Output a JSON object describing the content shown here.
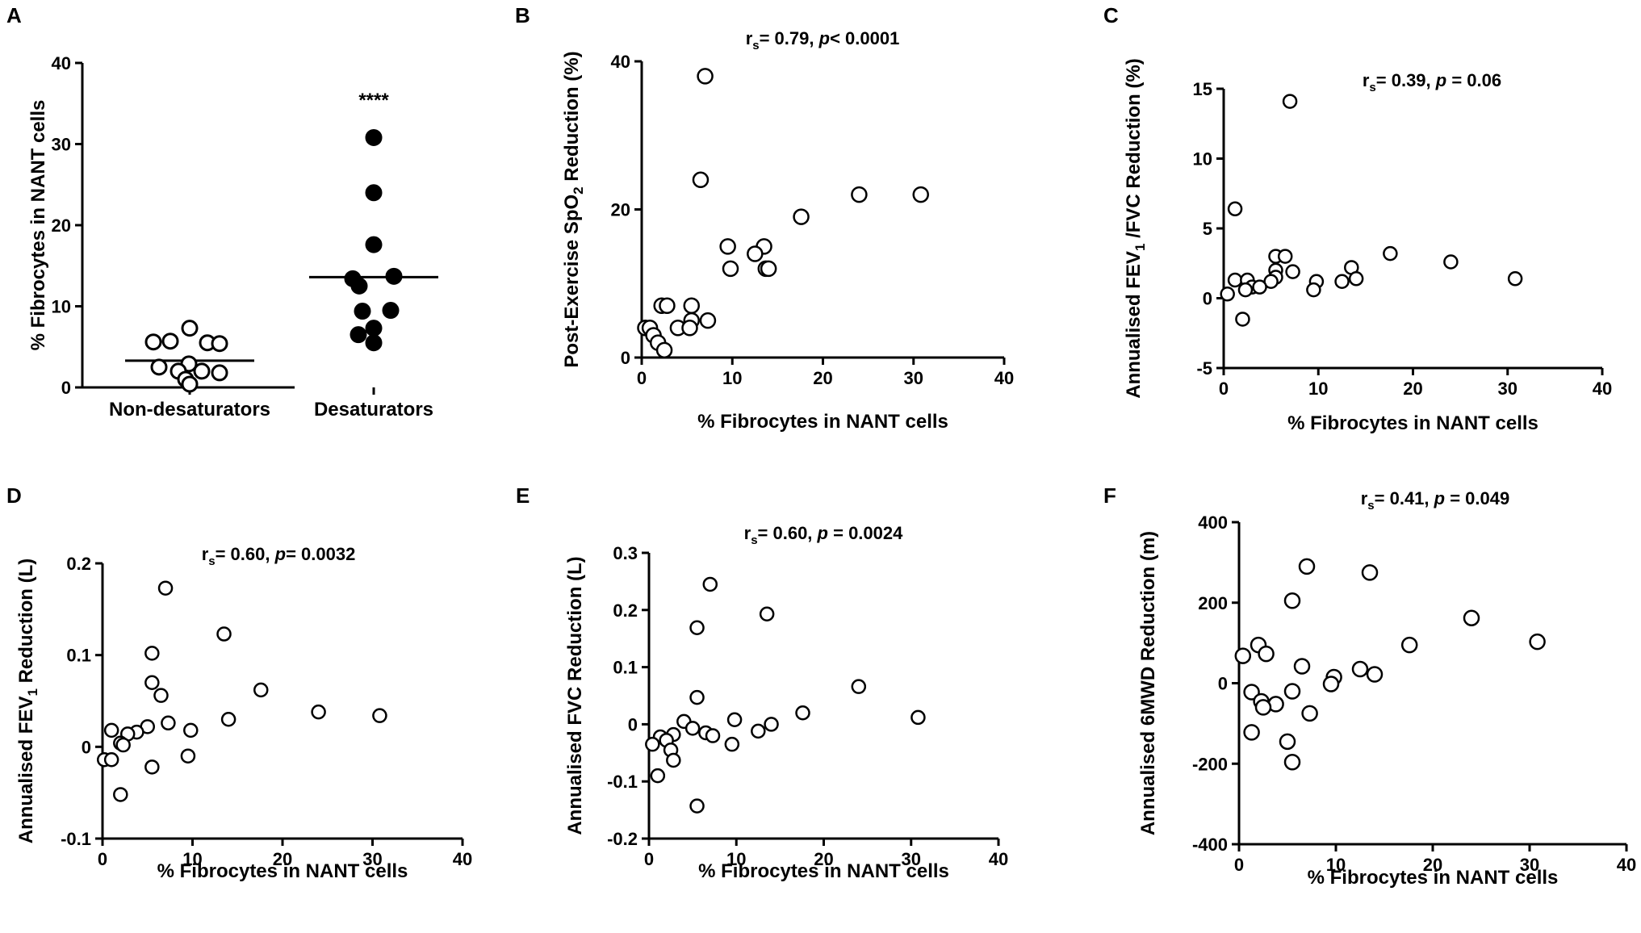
{
  "chart_data": [
    {
      "id": "A",
      "type": "scatter",
      "panel_label": "A",
      "ylabel": "% Fibrocytes in NANT cells",
      "xlabel": "",
      "categories": [
        "Non-desaturators",
        "Desaturators"
      ],
      "ylim": [
        0,
        40
      ],
      "yticks": [
        0,
        10,
        20,
        30,
        40
      ],
      "annotation": "****",
      "series": [
        {
          "name": "Non-desaturators",
          "fill": "open",
          "mean": 3.3,
          "values": [
            7.3,
            5.7,
            5.5,
            5.6,
            5.4,
            2.9,
            2.5,
            2.0,
            2.0,
            1.8,
            1.0,
            0.4
          ]
        },
        {
          "name": "Desaturators",
          "fill": "filled",
          "mean": 13.6,
          "values": [
            30.8,
            24.0,
            17.6,
            13.4,
            13.7,
            12.5,
            9.5,
            9.4,
            7.3,
            6.5,
            5.5
          ]
        }
      ]
    },
    {
      "id": "B",
      "type": "scatter",
      "panel_label": "B",
      "stat": {
        "rs": "r",
        "sub": "s",
        "pre": "= 0.79, ",
        "pvar": "p",
        "post": "< 0.0001"
      },
      "xlabel": "% Fibrocytes in NANT cells",
      "ylabel": "Post-Exercise SpO",
      "ylabel_sub": "2",
      "ylabel_end": " Reduction (%)",
      "xlim": [
        0,
        40
      ],
      "ylim": [
        0,
        40
      ],
      "xticks": [
        0,
        10,
        20,
        30,
        40
      ],
      "yticks": [
        0,
        20,
        40
      ],
      "points": [
        [
          7.0,
          38.0
        ],
        [
          6.5,
          24.0
        ],
        [
          24.0,
          22.0
        ],
        [
          30.8,
          22.0
        ],
        [
          17.6,
          19.0
        ],
        [
          13.5,
          15.0
        ],
        [
          9.5,
          15.0
        ],
        [
          12.5,
          14.0
        ],
        [
          13.7,
          12.0
        ],
        [
          14.0,
          12.0
        ],
        [
          9.8,
          12.0
        ],
        [
          2.2,
          7.0
        ],
        [
          2.8,
          7.0
        ],
        [
          5.5,
          7.0
        ],
        [
          5.5,
          5.0
        ],
        [
          7.3,
          5.0
        ],
        [
          0.4,
          4.0
        ],
        [
          0.9,
          4.0
        ],
        [
          4.0,
          4.0
        ],
        [
          5.3,
          4.0
        ],
        [
          1.3,
          3.0
        ],
        [
          1.8,
          2.0
        ],
        [
          2.5,
          1.0
        ]
      ]
    },
    {
      "id": "C",
      "type": "scatter",
      "panel_label": "C",
      "stat": {
        "rs": "r",
        "sub": "s",
        "pre": "= 0.39, ",
        "pvar": "p",
        "post": " = 0.06"
      },
      "xlabel": "% Fibrocytes in NANT cells",
      "ylabel": "Annualised FEV",
      "ylabel_sub": "1",
      "ylabel_end": " /FVC Reduction (%)",
      "xlim": [
        0,
        40
      ],
      "ylim": [
        -5,
        15
      ],
      "xticks": [
        0,
        10,
        20,
        30,
        40
      ],
      "yticks": [
        -5,
        0,
        5,
        10,
        15
      ],
      "points": [
        [
          7.0,
          14.1
        ],
        [
          1.2,
          6.4
        ],
        [
          5.5,
          3.0
        ],
        [
          6.5,
          3.0
        ],
        [
          17.6,
          3.2
        ],
        [
          24.0,
          2.6
        ],
        [
          13.5,
          2.2
        ],
        [
          5.5,
          2.0
        ],
        [
          7.3,
          1.9
        ],
        [
          5.5,
          1.5
        ],
        [
          1.2,
          1.3
        ],
        [
          2.5,
          1.3
        ],
        [
          5.0,
          1.2
        ],
        [
          9.8,
          1.2
        ],
        [
          12.5,
          1.2
        ],
        [
          14.0,
          1.4
        ],
        [
          30.8,
          1.4
        ],
        [
          3.0,
          0.8
        ],
        [
          3.8,
          0.8
        ],
        [
          2.3,
          0.6
        ],
        [
          9.5,
          0.6
        ],
        [
          0.4,
          0.3
        ],
        [
          2.0,
          -1.5
        ]
      ]
    },
    {
      "id": "D",
      "type": "scatter",
      "panel_label": "D",
      "stat": {
        "rs": "r",
        "sub": "s",
        "pre": "= 0.60, ",
        "pvar": "p",
        "post": "= 0.0032"
      },
      "xlabel": "% Fibrocytes in NANT cells",
      "ylabel": "Annualised FEV",
      "ylabel_sub": "1",
      "ylabel_end": " Reduction (L)",
      "xlim": [
        0,
        40
      ],
      "ylim": [
        -0.1,
        0.2
      ],
      "xticks": [
        0,
        10,
        20,
        30,
        40
      ],
      "yticks": [
        -0.1,
        0.0,
        0.1,
        0.2
      ],
      "points": [
        [
          7.0,
          0.173
        ],
        [
          13.5,
          0.123
        ],
        [
          5.5,
          0.102
        ],
        [
          5.5,
          0.07
        ],
        [
          17.6,
          0.062
        ],
        [
          6.5,
          0.056
        ],
        [
          24.0,
          0.038
        ],
        [
          30.8,
          0.034
        ],
        [
          14.0,
          0.03
        ],
        [
          7.3,
          0.026
        ],
        [
          5.0,
          0.022
        ],
        [
          9.8,
          0.018
        ],
        [
          1.0,
          0.018
        ],
        [
          3.8,
          0.016
        ],
        [
          2.8,
          0.014
        ],
        [
          2.0,
          0.004
        ],
        [
          2.3,
          0.002
        ],
        [
          0.2,
          -0.014
        ],
        [
          1.0,
          -0.014
        ],
        [
          9.5,
          -0.01
        ],
        [
          5.5,
          -0.022
        ],
        [
          2.0,
          -0.052
        ]
      ]
    },
    {
      "id": "E",
      "type": "scatter",
      "panel_label": "E",
      "stat": {
        "rs": "r",
        "sub": "s",
        "pre": "= 0.60, ",
        "pvar": "p",
        "post": " = 0.0024"
      },
      "xlabel": "% Fibrocytes in NANT cells",
      "ylabel": "Annualised FVC Reduction (L)",
      "xlim": [
        0,
        40
      ],
      "ylim": [
        -0.2,
        0.3
      ],
      "xticks": [
        0,
        10,
        20,
        30,
        40
      ],
      "yticks": [
        -0.2,
        -0.1,
        0.0,
        0.1,
        0.2,
        0.3
      ],
      "points": [
        [
          7.0,
          0.245
        ],
        [
          13.5,
          0.193
        ],
        [
          5.5,
          0.169
        ],
        [
          24.0,
          0.066
        ],
        [
          5.5,
          0.047
        ],
        [
          17.6,
          0.02
        ],
        [
          30.8,
          0.012
        ],
        [
          9.8,
          0.008
        ],
        [
          4.0,
          0.005
        ],
        [
          14.0,
          0.0
        ],
        [
          5.0,
          -0.007
        ],
        [
          6.5,
          -0.015
        ],
        [
          12.5,
          -0.012
        ],
        [
          7.3,
          -0.02
        ],
        [
          2.8,
          -0.018
        ],
        [
          1.3,
          -0.022
        ],
        [
          0.4,
          -0.035
        ],
        [
          2.0,
          -0.028
        ],
        [
          9.5,
          -0.035
        ],
        [
          2.5,
          -0.045
        ],
        [
          2.8,
          -0.063
        ],
        [
          1.0,
          -0.09
        ],
        [
          5.5,
          -0.143
        ]
      ]
    },
    {
      "id": "F",
      "type": "scatter",
      "panel_label": "F",
      "stat": {
        "rs": "r",
        "sub": "s",
        "pre": "= 0.41, ",
        "pvar": "p",
        "post": " = 0.049"
      },
      "xlabel": "% Fibrocytes in NANT cells",
      "ylabel": "Annualised 6MWD Reduction (m)",
      "xlim": [
        0,
        40
      ],
      "ylim": [
        -400,
        400
      ],
      "xticks": [
        0,
        10,
        20,
        30,
        40
      ],
      "yticks": [
        -400,
        -200,
        0,
        200,
        400
      ],
      "points": [
        [
          7.0,
          290
        ],
        [
          13.5,
          275
        ],
        [
          5.5,
          205
        ],
        [
          24.0,
          162
        ],
        [
          30.8,
          103
        ],
        [
          17.6,
          95
        ],
        [
          2.0,
          95
        ],
        [
          2.8,
          73
        ],
        [
          0.4,
          68
        ],
        [
          6.5,
          42
        ],
        [
          12.5,
          35
        ],
        [
          14.0,
          22
        ],
        [
          9.8,
          15
        ],
        [
          9.5,
          -2
        ],
        [
          5.5,
          -20
        ],
        [
          1.3,
          -22
        ],
        [
          2.3,
          -45
        ],
        [
          3.8,
          -52
        ],
        [
          2.5,
          -60
        ],
        [
          7.3,
          -75
        ],
        [
          1.3,
          -122
        ],
        [
          5.0,
          -145
        ],
        [
          5.5,
          -196
        ]
      ]
    }
  ]
}
